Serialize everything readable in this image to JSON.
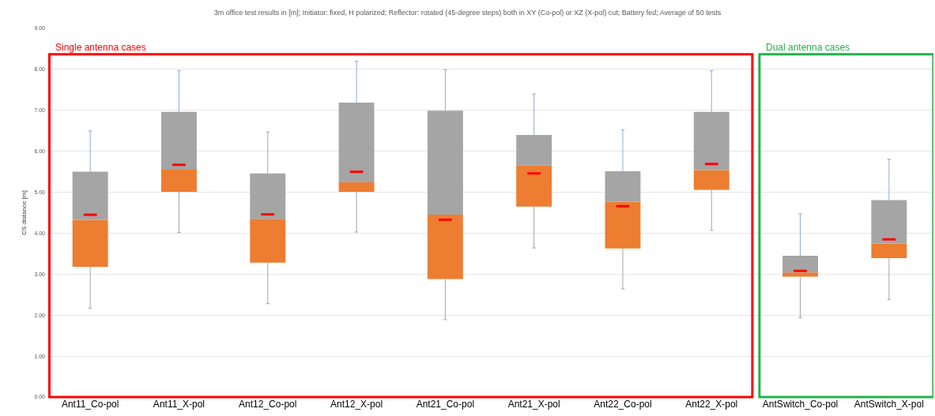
{
  "chart_data": {
    "type": "box",
    "title": "3m office test results in [m]; Initiator: fixed, H polarized; Reflector: rotated (45-degree steps) both in XY (Co-pol) or XZ (X-pol) cut; Battery fed; Average of 50 tests",
    "ylabel": "CS distance [m]",
    "categories": [
      "Ant11_Co-pol",
      "Ant11_X-pol",
      "Ant12_Co-pol",
      "Ant12_X-pol",
      "Ant21_Co-pol",
      "Ant21_X-pol",
      "Ant22_Co-pol",
      "Ant22_X-pol",
      "AntSwitch_Co-pol",
      "AntSwitch_X-pol"
    ],
    "series": [
      {
        "color": "#ed7d31",
        "boxes": [
          {
            "low": 2.17,
            "q1": 3.18,
            "median": 4.32,
            "q3": 5.5,
            "high": 6.5,
            "mean": 4.45
          },
          {
            "low": 4.02,
            "q1": 5.01,
            "median": 5.55,
            "q3": 6.96,
            "high": 7.97,
            "mean": 5.67
          },
          {
            "low": 2.28,
            "q1": 3.28,
            "median": 4.35,
            "q3": 5.46,
            "high": 6.47,
            "mean": 4.46
          },
          {
            "low": 4.03,
            "q1": 5.01,
            "median": 5.24,
            "q3": 7.19,
            "high": 8.2,
            "mean": 5.5
          },
          {
            "low": 1.89,
            "q1": 2.88,
            "median": 4.45,
            "q3": 6.99,
            "high": 7.99,
            "mean": 4.33
          },
          {
            "low": 3.64,
            "q1": 4.65,
            "median": 5.65,
            "q3": 6.4,
            "high": 7.4,
            "mean": 5.46
          },
          {
            "low": 2.64,
            "q1": 3.63,
            "median": 4.77,
            "q3": 5.51,
            "high": 6.52,
            "mean": 4.66
          },
          {
            "low": 4.07,
            "q1": 5.06,
            "median": 5.54,
            "q3": 6.96,
            "high": 7.97,
            "mean": 5.69
          },
          {
            "low": 1.94,
            "q1": 2.94,
            "median": 3.04,
            "q3": 3.45,
            "high": 4.47,
            "mean": 3.08
          },
          {
            "low": 2.38,
            "q1": 3.39,
            "median": 3.75,
            "q3": 4.81,
            "high": 5.81,
            "mean": 3.85
          }
        ]
      }
    ],
    "annotations": [
      "Single antenna cases",
      "Dual antenna cases"
    ],
    "ylim": [
      0,
      9
    ],
    "yticks": [
      {
        "value": 0,
        "label": "0.00"
      },
      {
        "value": 1,
        "label": "1.00"
      },
      {
        "value": 2,
        "label": "2.00"
      },
      {
        "value": 3,
        "label": "3.00"
      },
      {
        "value": 4,
        "label": "4.00"
      },
      {
        "value": 5,
        "label": "5.00"
      },
      {
        "value": 6,
        "label": "6.00"
      },
      {
        "value": 7,
        "label": "7.00"
      },
      {
        "value": 8,
        "label": "8.00"
      },
      {
        "value": 9,
        "label": "9.00"
      }
    ],
    "grid": "y"
  }
}
